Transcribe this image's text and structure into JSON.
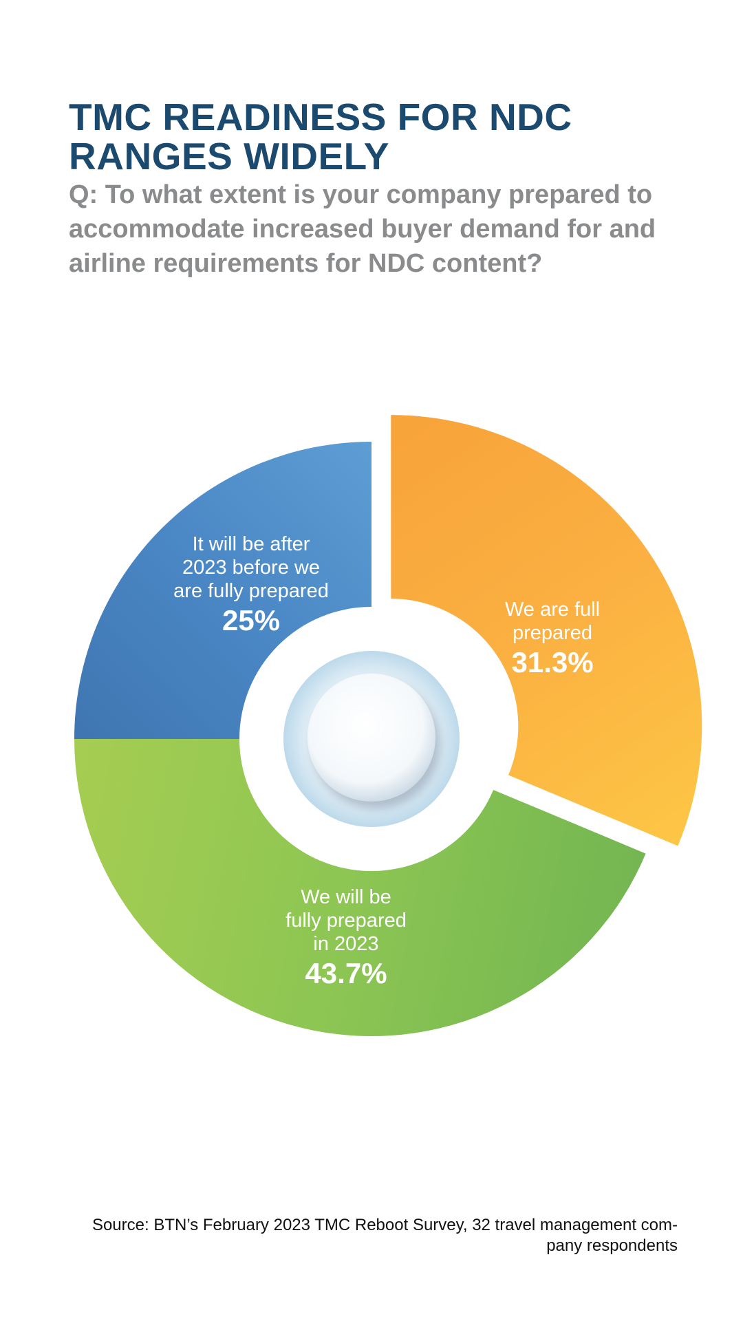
{
  "header": {
    "title_line1": "TMC READINESS FOR NDC",
    "title_line2": "RANGES WIDELY",
    "question": "Q: To what extent is your company prepared to accommodate increased buyer demand for and airline requirements for NDC content?"
  },
  "chart_data": {
    "type": "pie",
    "style": "donut",
    "slices": [
      {
        "label_lines": [
          "We are full",
          "prepared"
        ],
        "value": 31.3,
        "display": "31.3%",
        "color": "#fbb041",
        "color_light": "#fdc646",
        "color_dark": "#f7a33a",
        "exploded": true
      },
      {
        "label_lines": [
          "We will be",
          "fully prepared",
          "in 2023"
        ],
        "value": 43.7,
        "display": "43.7%",
        "color": "#8dc653",
        "color_light": "#a6cd51",
        "color_dark": "#74b652"
      },
      {
        "label_lines": [
          "It will be after",
          "2023 before we",
          "are fully prepared"
        ],
        "value": 25,
        "display": "25%",
        "color": "#4a87c5",
        "color_light": "#5e9dd4",
        "color_dark": "#3f76b1"
      }
    ],
    "start_angle_deg": 0,
    "direction": "clockwise",
    "legend": "none"
  },
  "footer": {
    "source_line1": "Source: BTN’s February 2023 TMC Reboot Survey, 32 travel management com-",
    "source_line2": "pany respondents"
  }
}
